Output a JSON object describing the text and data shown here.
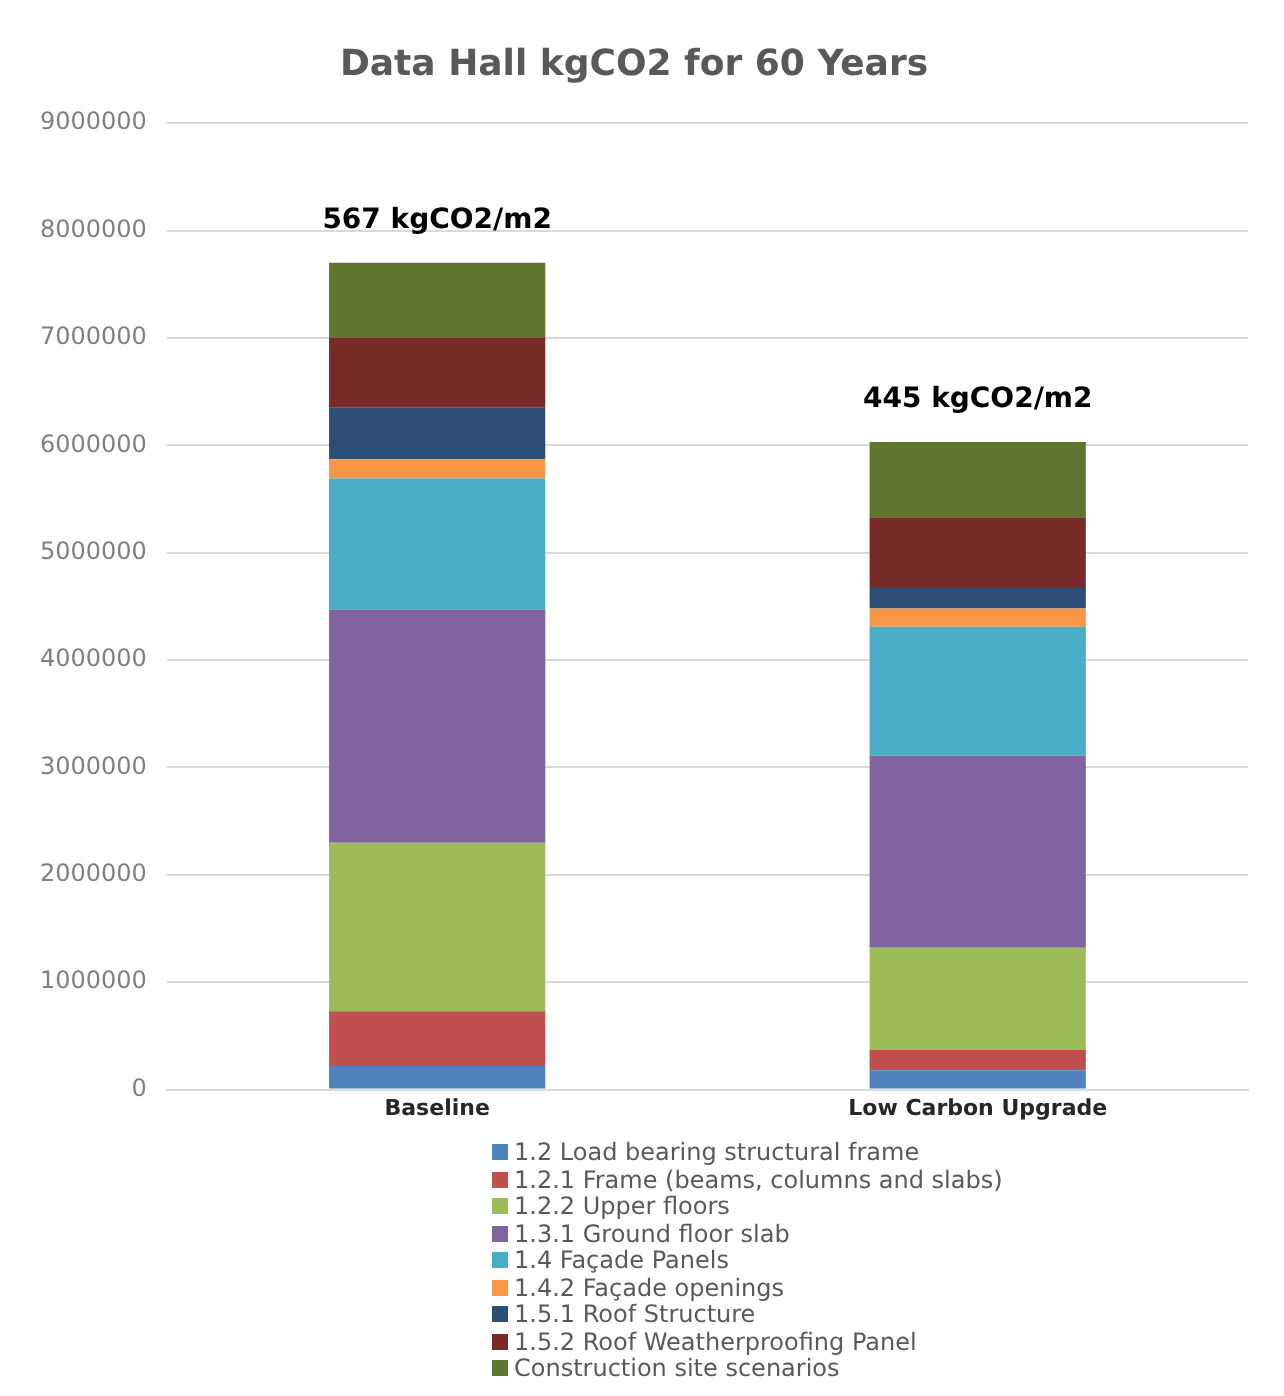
{
  "chart_data": {
    "type": "bar",
    "stacked": true,
    "title": "Data Hall kgCO2 for 60 Years",
    "categories": [
      "Baseline",
      "Low Carbon Upgrade"
    ],
    "series": [
      {
        "name": "1.2 Load bearing structural frame",
        "color": "#4f81bd",
        "values": [
          220000,
          180000
        ]
      },
      {
        "name": "1.2.1 Frame (beams, columns and slabs)",
        "color": "#c0504d",
        "values": [
          510000,
          190000
        ]
      },
      {
        "name": "1.2.2 Upper floors",
        "color": "#9bbb59",
        "values": [
          1570000,
          950000
        ]
      },
      {
        "name": "1.3.1 Ground floor slab",
        "color": "#8064a2",
        "values": [
          2170000,
          1790000
        ]
      },
      {
        "name": "1.4 Façade Panels",
        "color": "#4bacc6",
        "values": [
          1220000,
          1200000
        ]
      },
      {
        "name": "1.4.2 Façade openings",
        "color": "#f79646",
        "values": [
          180000,
          170000
        ]
      },
      {
        "name": "1.5.1 Roof Structure",
        "color": "#2c4d75",
        "values": [
          480000,
          200000
        ]
      },
      {
        "name": "1.5.2 Roof Weatherproofing Panel",
        "color": "#772c2a",
        "values": [
          650000,
          650000
        ]
      },
      {
        "name": "Construction site scenarios",
        "color": "#5f7530",
        "values": [
          700000,
          700000
        ]
      }
    ],
    "ylim": [
      0,
      9000000
    ],
    "yticks": [
      0,
      1000000,
      2000000,
      3000000,
      4000000,
      5000000,
      6000000,
      7000000,
      8000000,
      9000000
    ],
    "grid": "y",
    "legend": "bottom",
    "annotations": [
      {
        "text": "567 kgCO2/m2",
        "x": "Baseline",
        "y": 7700000
      },
      {
        "text": "445 kgCO2/m2",
        "x": "Low Carbon Upgrade",
        "y": 6030000
      }
    ]
  }
}
